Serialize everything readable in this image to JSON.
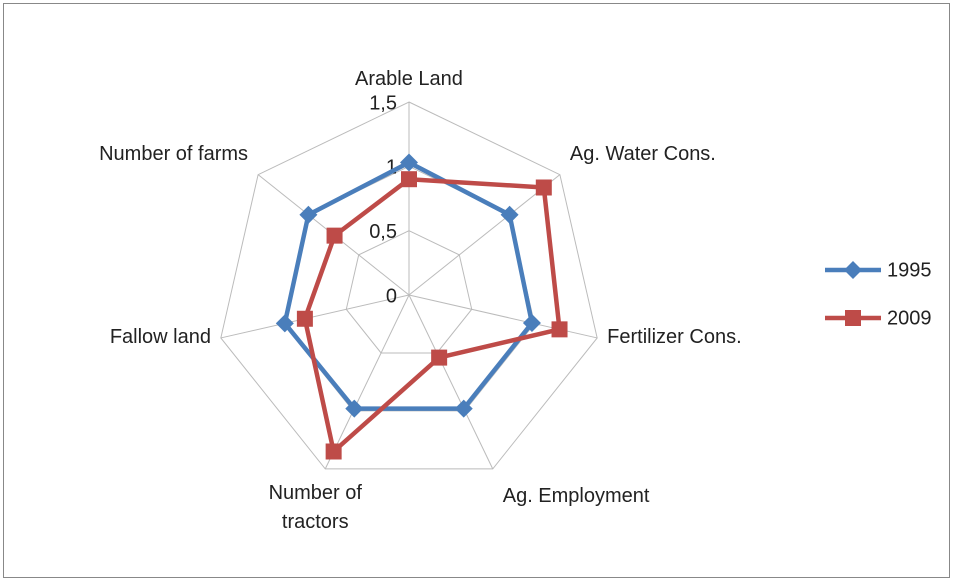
{
  "chart_data": {
    "type": "radar",
    "categories": [
      "Arable Land",
      "Ag. Water Cons.",
      "Fertilizer Cons.",
      "Ag. Employment",
      "Number of tractors",
      "Fallow land",
      "Number of farms"
    ],
    "series": [
      {
        "name": "1995",
        "color": "#4a7ebb",
        "marker": "diamond",
        "values": [
          1.03,
          1.0,
          0.98,
          0.98,
          0.98,
          0.99,
          1.0
        ]
      },
      {
        "name": "2009",
        "color": "#be4b48",
        "marker": "square",
        "values": [
          0.9,
          1.34,
          1.2,
          0.54,
          1.35,
          0.83,
          0.74
        ]
      }
    ],
    "ylim": [
      0,
      1.5
    ],
    "yticks": [
      0,
      {
        "value": 0.5,
        "label": "0,5"
      },
      1,
      {
        "value": 1.5,
        "label": "1,5"
      }
    ],
    "grid": true,
    "legend": "right"
  }
}
